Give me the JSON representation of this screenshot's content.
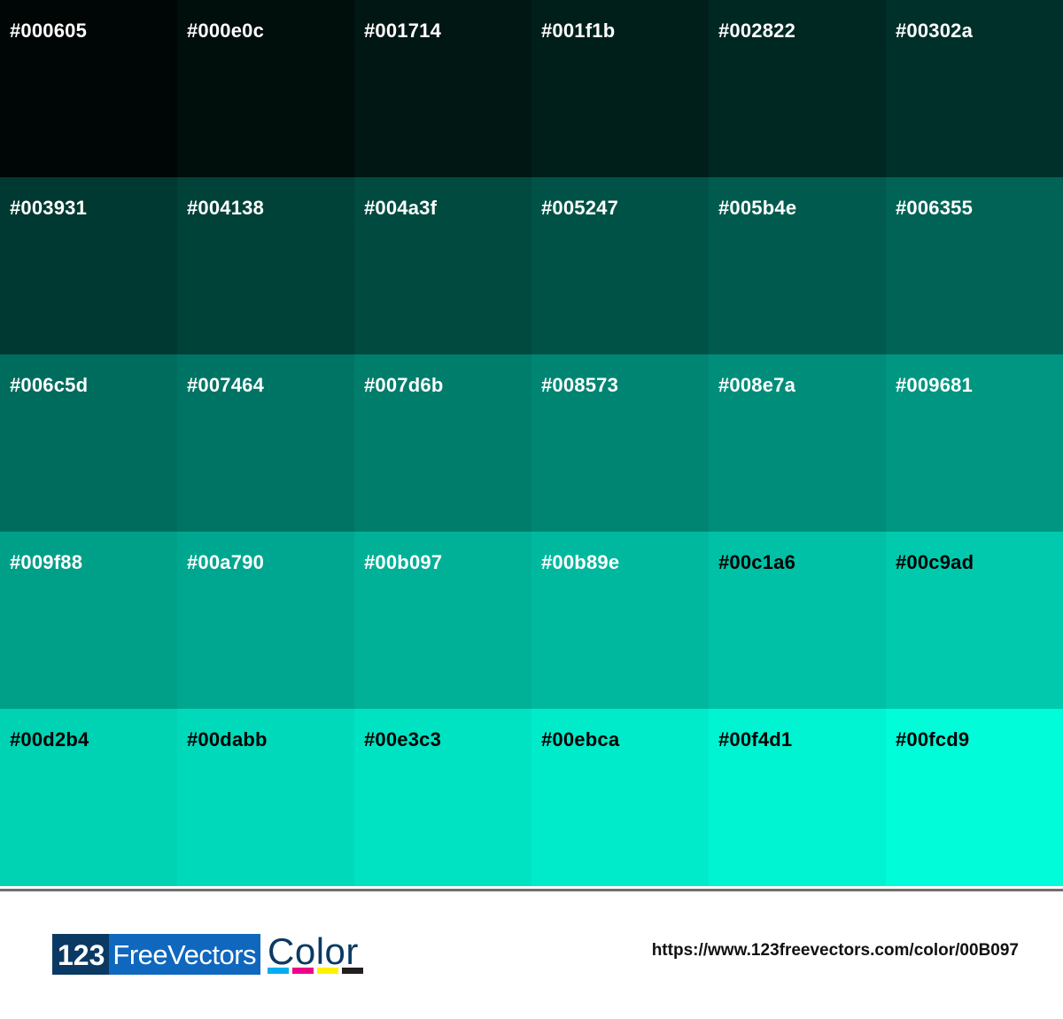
{
  "swatches": [
    {
      "hex": "#000605",
      "text": "#ffffff"
    },
    {
      "hex": "#000e0c",
      "text": "#ffffff"
    },
    {
      "hex": "#001714",
      "text": "#ffffff"
    },
    {
      "hex": "#001f1b",
      "text": "#ffffff"
    },
    {
      "hex": "#002822",
      "text": "#ffffff"
    },
    {
      "hex": "#00302a",
      "text": "#ffffff"
    },
    {
      "hex": "#003931",
      "text": "#ffffff"
    },
    {
      "hex": "#004138",
      "text": "#ffffff"
    },
    {
      "hex": "#004a3f",
      "text": "#ffffff"
    },
    {
      "hex": "#005247",
      "text": "#ffffff"
    },
    {
      "hex": "#005b4e",
      "text": "#ffffff"
    },
    {
      "hex": "#006355",
      "text": "#ffffff"
    },
    {
      "hex": "#006c5d",
      "text": "#ffffff"
    },
    {
      "hex": "#007464",
      "text": "#ffffff"
    },
    {
      "hex": "#007d6b",
      "text": "#ffffff"
    },
    {
      "hex": "#008573",
      "text": "#ffffff"
    },
    {
      "hex": "#008e7a",
      "text": "#ffffff"
    },
    {
      "hex": "#009681",
      "text": "#ffffff"
    },
    {
      "hex": "#009f88",
      "text": "#ffffff"
    },
    {
      "hex": "#00a790",
      "text": "#ffffff"
    },
    {
      "hex": "#00b097",
      "text": "#ffffff"
    },
    {
      "hex": "#00b89e",
      "text": "#ffffff"
    },
    {
      "hex": "#00c1a6",
      "text": "#000000"
    },
    {
      "hex": "#00c9ad",
      "text": "#000000"
    },
    {
      "hex": "#00d2b4",
      "text": "#000000"
    },
    {
      "hex": "#00dabb",
      "text": "#000000"
    },
    {
      "hex": "#00e3c3",
      "text": "#000000"
    },
    {
      "hex": "#00ebca",
      "text": "#000000"
    },
    {
      "hex": "#00f4d1",
      "text": "#000000"
    },
    {
      "hex": "#00fcd9",
      "text": "#000000"
    }
  ],
  "footer": {
    "logo": {
      "part1": "123",
      "part2": "FreeVectors",
      "part3": "Color",
      "bar_colors": [
        "#00aeef",
        "#ec008c",
        "#fff200",
        "#231f20"
      ]
    },
    "url": "https://www.123freevectors.com/color/00B097"
  }
}
